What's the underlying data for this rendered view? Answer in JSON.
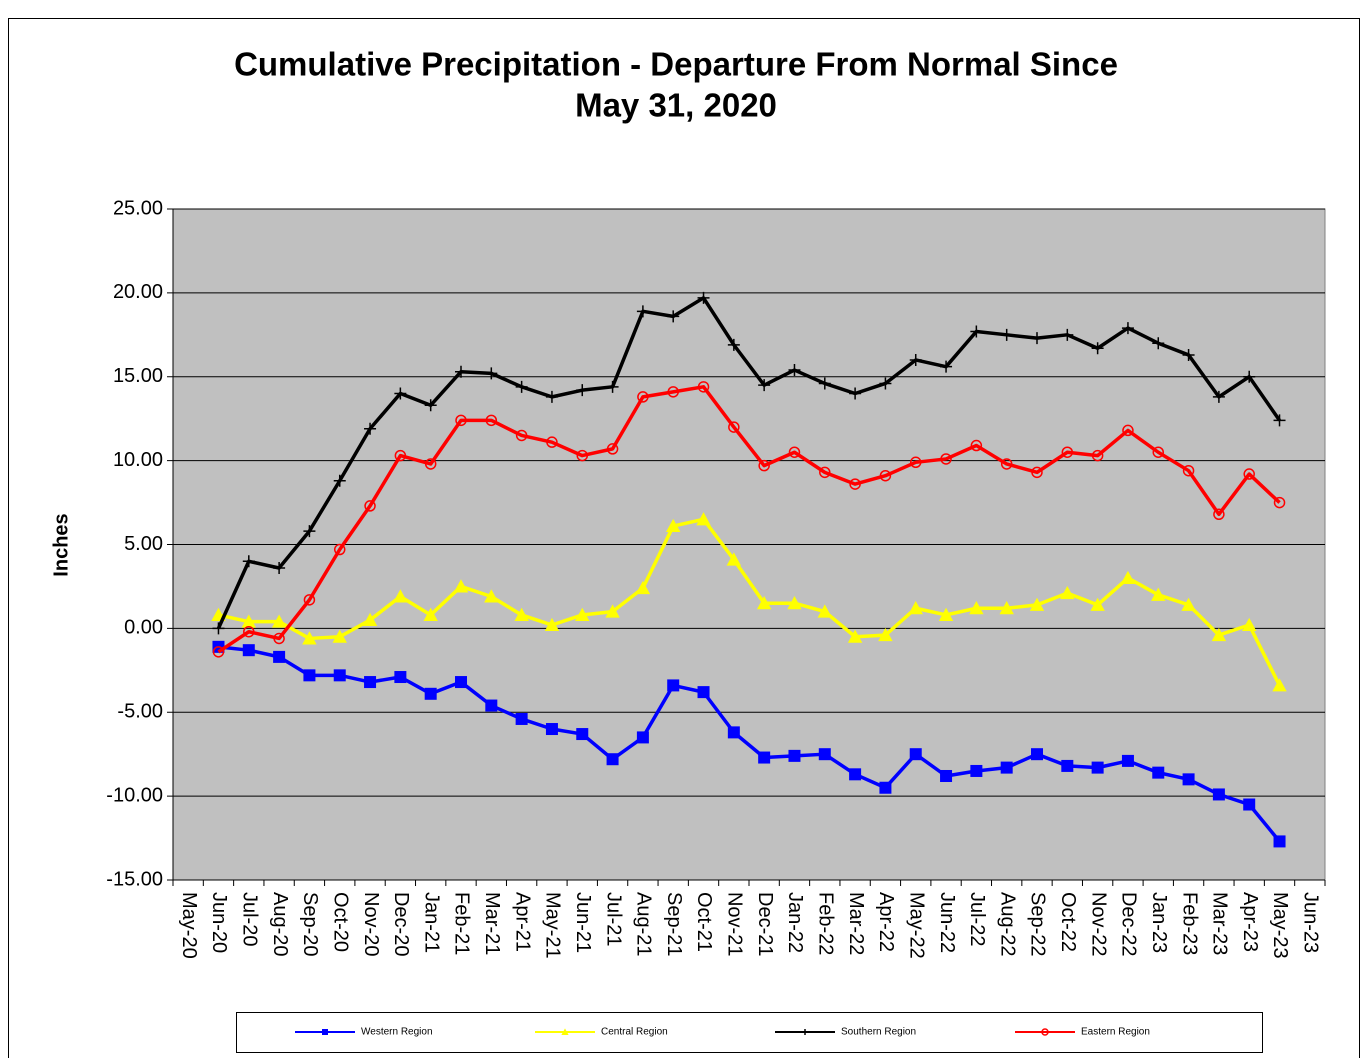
{
  "chart_data": {
    "type": "line",
    "title": "Cumulative Precipitation - Departure From Normal Since",
    "subtitle": "May 31,  2020",
    "y_label": "Inches",
    "categories": [
      "May-20",
      "Jun-20",
      "Jul-20",
      "Aug-20",
      "Sep-20",
      "Oct-20",
      "Nov-20",
      "Dec-20",
      "Jan-21",
      "Feb-21",
      "Mar-21",
      "Apr-21",
      "May-21",
      "Jun-21",
      "Jul-21",
      "Aug-21",
      "Sep-21",
      "Oct-21",
      "Nov-21",
      "Dec-21",
      "Jan-22",
      "Feb-22",
      "Mar-22",
      "Apr-22",
      "May-22",
      "Jun-22",
      "Jul-22",
      "Aug-22",
      "Sep-22",
      "Oct-22",
      "Nov-22",
      "Dec-22",
      "Jan-23",
      "Feb-23",
      "Mar-23",
      "Apr-23",
      "May-23",
      "Jun-23"
    ],
    "ylim": [
      -15,
      25
    ],
    "yticks": [
      {
        "value": -15,
        "label": "-15.00"
      },
      {
        "value": -10,
        "label": "-10.00"
      },
      {
        "value": -5,
        "label": "-5.00"
      },
      {
        "value": 0,
        "label": "0.00"
      },
      {
        "value": 5,
        "label": "5.00"
      },
      {
        "value": 10,
        "label": "10.00"
      },
      {
        "value": 15,
        "label": "15.00"
      },
      {
        "value": 20,
        "label": "20.00"
      },
      {
        "value": 25,
        "label": "25.00"
      }
    ],
    "grid": true,
    "legend": "bottom",
    "series": [
      {
        "name": "Western Region",
        "color": "#0000ff",
        "marker": "square",
        "values": [
          null,
          -1.1,
          -1.3,
          -1.7,
          -2.8,
          -2.8,
          -3.2,
          -2.9,
          -3.9,
          -3.2,
          -4.6,
          -5.4,
          -6.0,
          -6.3,
          -7.8,
          -6.5,
          -3.4,
          -3.8,
          -6.2,
          -7.7,
          -7.6,
          -7.5,
          -8.7,
          -9.5,
          -7.5,
          -8.8,
          -8.5,
          -8.3,
          -7.5,
          -8.2,
          -8.3,
          -7.9,
          -8.6,
          -9.0,
          -9.9,
          -10.5,
          -12.7,
          null
        ]
      },
      {
        "name": "Central Region",
        "color": "#ffff00",
        "marker": "triangle",
        "values": [
          null,
          0.8,
          0.4,
          0.4,
          -0.6,
          -0.5,
          0.5,
          1.9,
          0.8,
          2.5,
          1.9,
          0.8,
          0.2,
          0.8,
          1.0,
          2.4,
          6.1,
          6.5,
          4.1,
          1.5,
          1.5,
          1.0,
          -0.5,
          -0.4,
          1.2,
          0.8,
          1.2,
          1.2,
          1.4,
          2.1,
          1.4,
          3.0,
          2.0,
          1.4,
          -0.4,
          0.2,
          -3.4,
          null
        ]
      },
      {
        "name": "Southern Region",
        "color": "#000000",
        "marker": "plus",
        "values": [
          null,
          0.0,
          4.0,
          3.6,
          5.8,
          8.8,
          11.9,
          14.0,
          13.3,
          15.3,
          15.2,
          14.4,
          13.8,
          14.2,
          14.4,
          18.9,
          18.6,
          19.7,
          16.9,
          14.5,
          15.4,
          14.6,
          14.0,
          14.6,
          16.0,
          15.6,
          17.7,
          17.5,
          17.3,
          17.5,
          16.7,
          17.9,
          17.0,
          16.3,
          13.8,
          15.0,
          12.4,
          null
        ]
      },
      {
        "name": "Eastern Region",
        "color": "#ff0000",
        "marker": "circle",
        "values": [
          null,
          -1.4,
          -0.2,
          -0.6,
          1.7,
          4.7,
          7.3,
          10.3,
          9.8,
          12.4,
          12.4,
          11.5,
          11.1,
          10.3,
          10.7,
          13.8,
          14.1,
          14.4,
          12.0,
          9.7,
          10.5,
          9.3,
          8.6,
          9.1,
          9.9,
          10.1,
          10.9,
          9.8,
          9.3,
          10.5,
          10.3,
          11.8,
          10.5,
          9.4,
          6.8,
          9.2,
          7.5,
          null
        ]
      }
    ]
  }
}
